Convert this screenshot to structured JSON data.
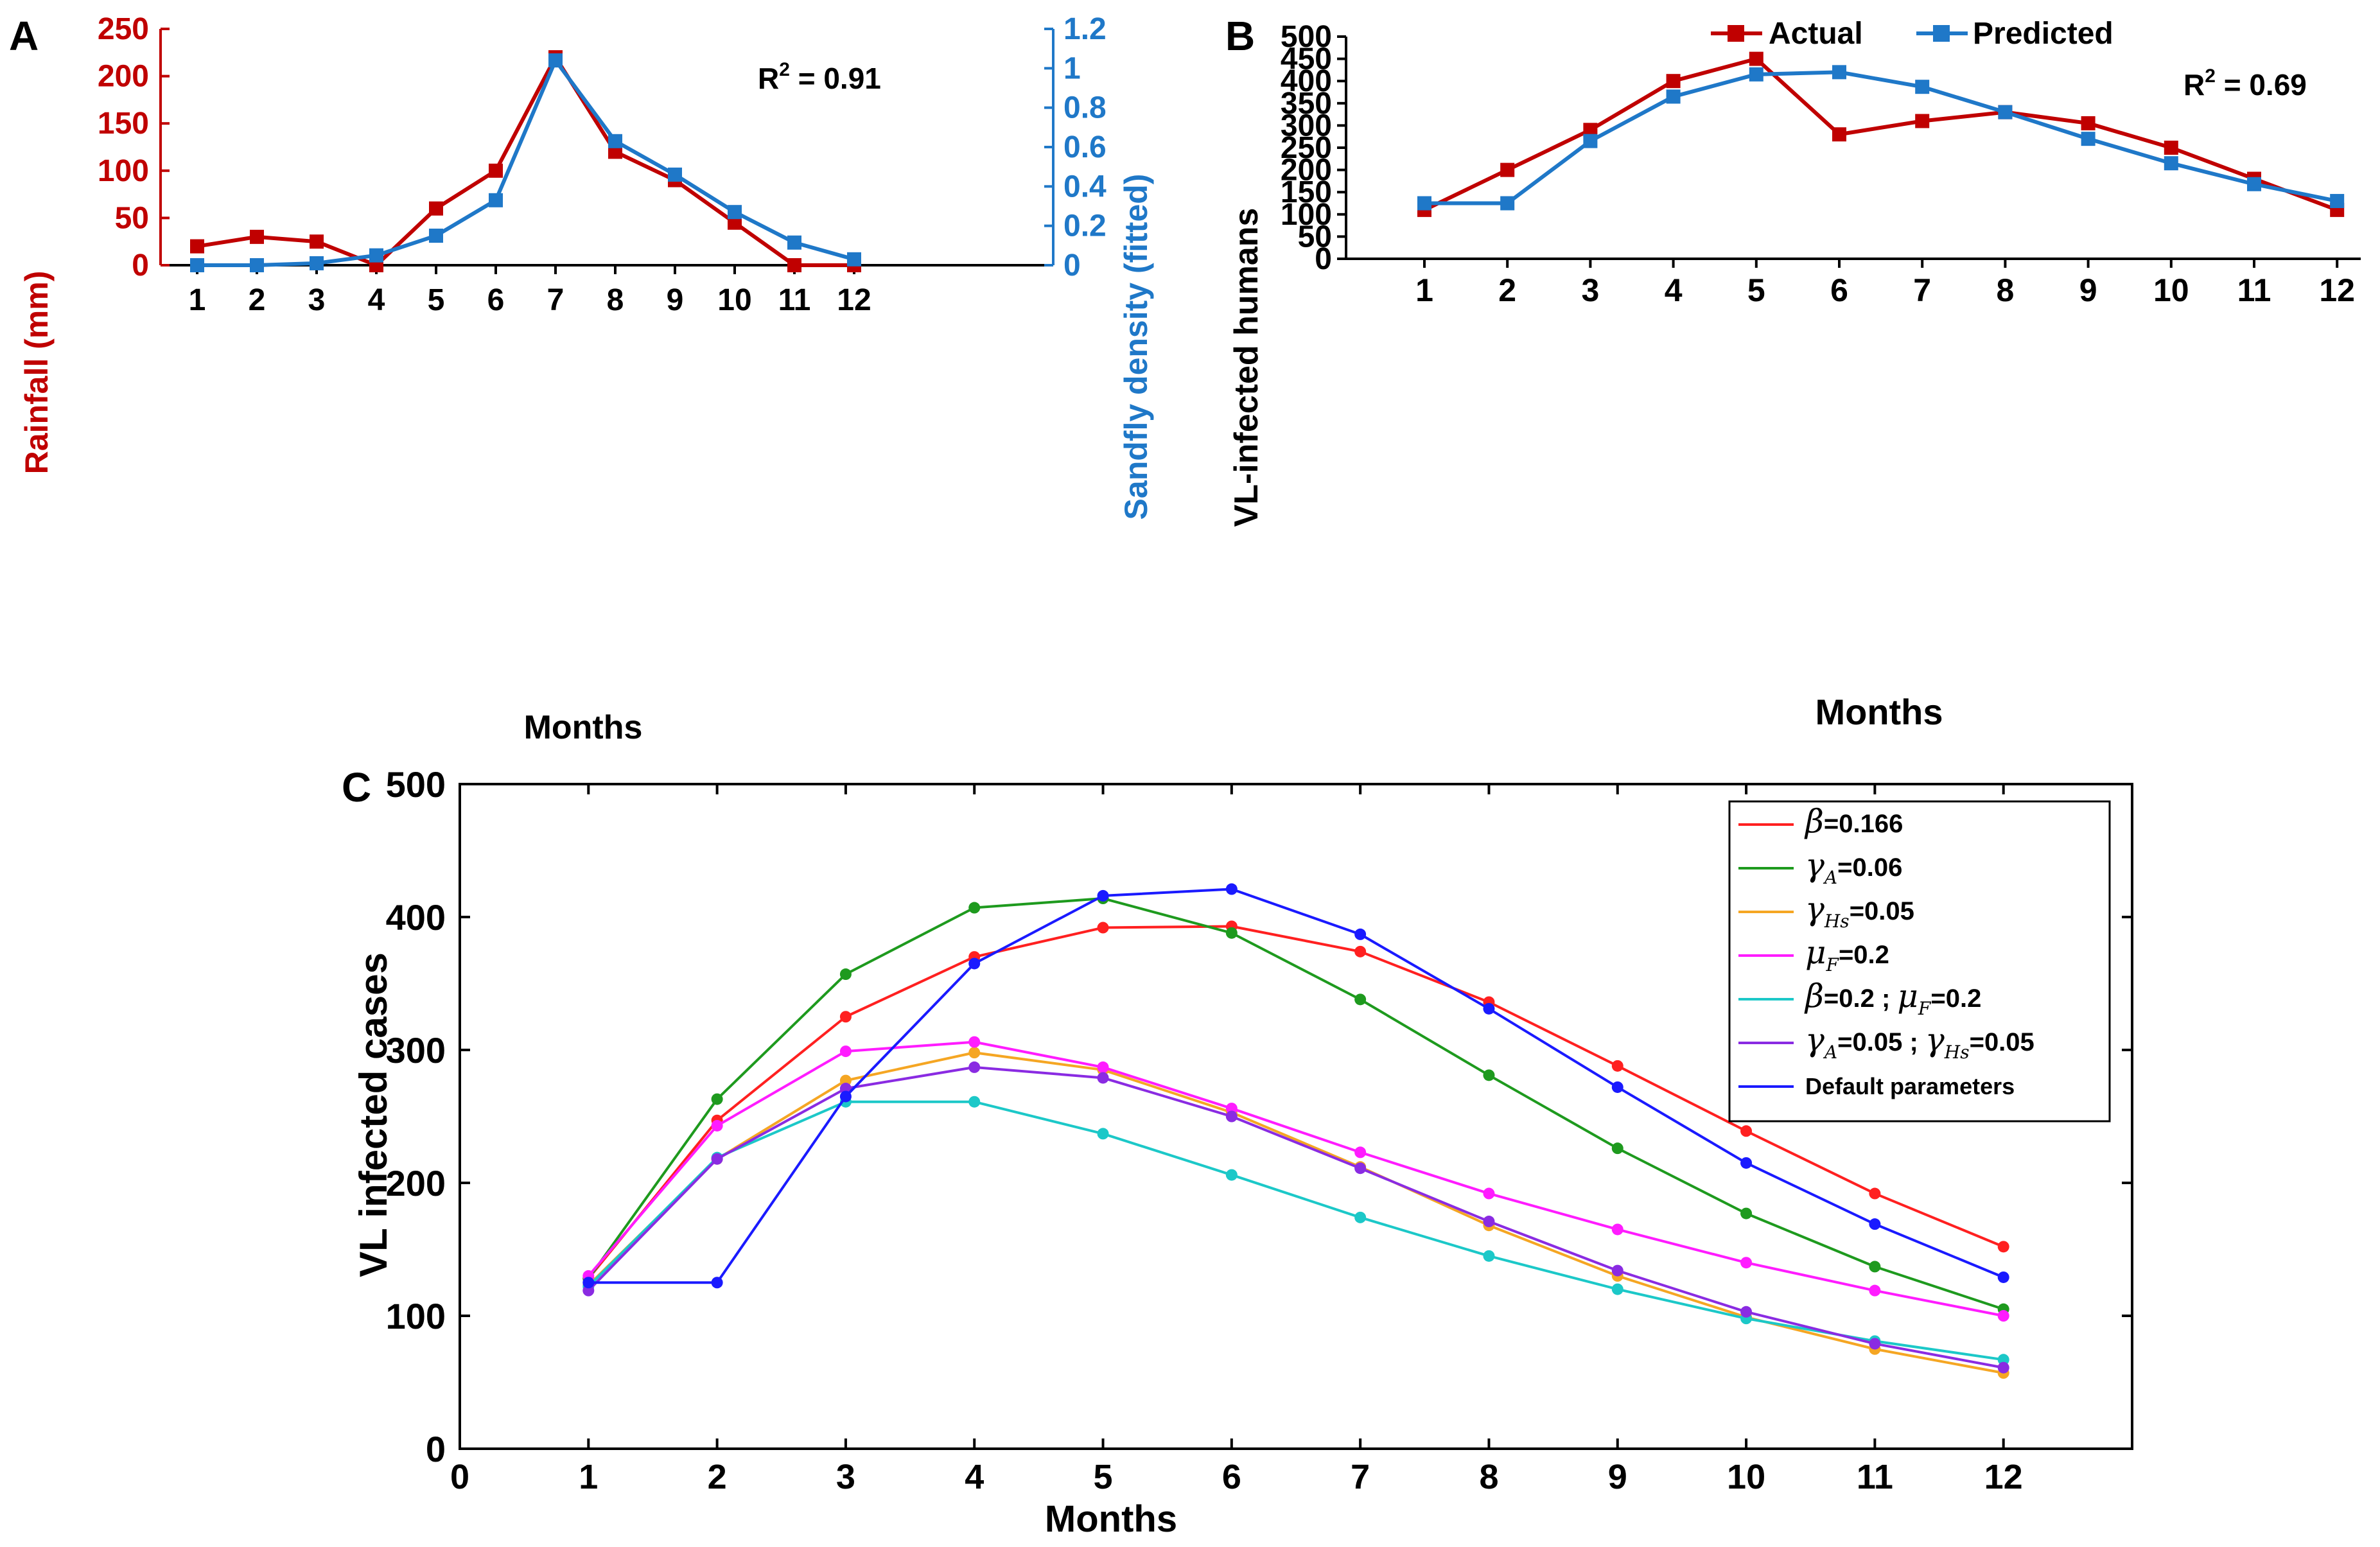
{
  "colors": {
    "rainfall": "#c00000",
    "sandfly": "#1f78c8",
    "actual": "#c00000",
    "predicted": "#1f78c8",
    "axis": "#000000"
  },
  "panels": {
    "a": {
      "letter": "A",
      "r2_prefix": "R",
      "r2_sup": "2",
      "r2_value": " = 0.91",
      "xlabel": "Months",
      "ylabel_left": "Rainfall (mm)",
      "ylabel_right": "Sandfly density (fitted)"
    },
    "b": {
      "letter": "B",
      "r2_prefix": "R",
      "r2_sup": "2",
      "r2_value": " = 0.69",
      "xlabel": "Months",
      "ylabel": "VL-infected humans"
    },
    "c": {
      "letter": "C",
      "xlabel": "Months",
      "ylabel": "VL infected cases"
    }
  },
  "chart_data": [
    {
      "id": "A",
      "type": "line",
      "title": "",
      "xlabel": "Months",
      "ylabel": "Rainfall (mm)",
      "y2label": "Sandfly density (fitted)",
      "categories": [
        1,
        2,
        3,
        4,
        5,
        6,
        7,
        8,
        9,
        10,
        11,
        12
      ],
      "ylim": [
        0,
        250
      ],
      "y2lim": [
        0,
        1.2
      ],
      "yticks": [
        0,
        50,
        100,
        150,
        200,
        250
      ],
      "y2ticks": [
        "0",
        "0.2",
        "0.4",
        "0.6",
        "0.8",
        "1",
        "1.2"
      ],
      "annotation": "R2 = 0.91",
      "series": [
        {
          "name": "Rainfall (mm)",
          "axis": "left",
          "color": "#c00000",
          "values": [
            20,
            30,
            25,
            0,
            60,
            100,
            220,
            120,
            90,
            45,
            0,
            0
          ]
        },
        {
          "name": "Sandfly density (fitted)",
          "axis": "right",
          "color": "#1f78c8",
          "values": [
            0,
            0,
            0.01,
            0.05,
            0.15,
            0.33,
            1.04,
            0.63,
            0.46,
            0.27,
            0.115,
            0.03
          ]
        }
      ]
    },
    {
      "id": "B",
      "type": "line",
      "title": "",
      "xlabel": "Months",
      "ylabel": "VL-infected humans",
      "categories": [
        1,
        2,
        3,
        4,
        5,
        6,
        7,
        8,
        9,
        10,
        11,
        12
      ],
      "ylim": [
        0,
        500
      ],
      "yticks": [
        0,
        50,
        100,
        150,
        200,
        250,
        300,
        350,
        400,
        450,
        500
      ],
      "legend_position": "top-center",
      "annotation": "R2 = 0.69",
      "series": [
        {
          "name": "Actual",
          "color": "#c00000",
          "values": [
            110,
            200,
            290,
            400,
            450,
            280,
            310,
            330,
            305,
            250,
            180,
            110
          ]
        },
        {
          "name": "Predicted",
          "color": "#1f78c8",
          "values": [
            125,
            125,
            265,
            365,
            415,
            420,
            387,
            330,
            270,
            215,
            168,
            130
          ]
        }
      ]
    },
    {
      "id": "C",
      "type": "line",
      "title": "",
      "xlabel": "Months",
      "ylabel": "VL infected cases",
      "x": [
        1,
        2,
        3,
        4,
        5,
        6,
        7,
        8,
        9,
        10,
        11,
        12
      ],
      "xlim": [
        0,
        13
      ],
      "xticks": [
        0,
        1,
        2,
        3,
        4,
        5,
        6,
        7,
        8,
        9,
        10,
        11,
        12
      ],
      "ylim": [
        0,
        500
      ],
      "yticks": [
        0,
        100,
        200,
        300,
        400,
        500
      ],
      "legend_position": "top-right",
      "series": [
        {
          "legend": [
            {
              "t": "sym",
              "v": "β"
            },
            {
              "t": "txt",
              "v": "=0.166"
            }
          ],
          "name": "β=0.166",
          "color": "#ff2020",
          "values": [
            128,
            247,
            325,
            370,
            392,
            393,
            374,
            336,
            288,
            239,
            192,
            152
          ]
        },
        {
          "legend": [
            {
              "t": "sym",
              "v": "γ"
            },
            {
              "t": "sub",
              "v": "A"
            },
            {
              "t": "txt",
              "v": "=0.06"
            }
          ],
          "name": "γA=0.06",
          "color": "#1e9a1e",
          "values": [
            128,
            263,
            357,
            407,
            414,
            388,
            338,
            281,
            226,
            177,
            137,
            105
          ]
        },
        {
          "legend": [
            {
              "t": "sym",
              "v": "γ"
            },
            {
              "t": "sub",
              "v": "Hs"
            },
            {
              "t": "txt",
              "v": "=0.05"
            }
          ],
          "name": "γHs=0.05",
          "color": "#f5a623",
          "values": [
            123,
            218,
            277,
            298,
            285,
            253,
            212,
            168,
            130,
            99,
            75,
            57
          ]
        },
        {
          "legend": [
            {
              "t": "sym",
              "v": "μ"
            },
            {
              "t": "sub",
              "v": "F"
            },
            {
              "t": "txt",
              "v": "=0.2"
            }
          ],
          "name": "μF=0.2",
          "color": "#ff1cff",
          "values": [
            130,
            243,
            299,
            306,
            287,
            256,
            223,
            192,
            165,
            140,
            119,
            100
          ]
        },
        {
          "legend": [
            {
              "t": "sym",
              "v": "β"
            },
            {
              "t": "txt",
              "v": "=0.2 ; "
            },
            {
              "t": "sym",
              "v": "μ"
            },
            {
              "t": "sub",
              "v": "F"
            },
            {
              "t": "txt",
              "v": "=0.2"
            }
          ],
          "name": "β=0.2 ; μF=0.2",
          "color": "#1cc8c8",
          "values": [
            122,
            219,
            261,
            261,
            237,
            206,
            174,
            145,
            120,
            98,
            81,
            67
          ]
        },
        {
          "legend": [
            {
              "t": "sym",
              "v": "γ"
            },
            {
              "t": "sub",
              "v": "A"
            },
            {
              "t": "txt",
              "v": "=0.05 ; "
            },
            {
              "t": "sym",
              "v": "γ"
            },
            {
              "t": "sub",
              "v": "Hs"
            },
            {
              "t": "txt",
              "v": "=0.05"
            }
          ],
          "name": "γA=0.05 ; γHs=0.05",
          "color": "#8a2be2",
          "values": [
            119,
            218,
            271,
            287,
            279,
            250,
            211,
            171,
            134,
            103,
            79,
            61
          ]
        },
        {
          "legend": [
            {
              "t": "txt",
              "v": "Default parameters"
            }
          ],
          "name": "Default parameters",
          "color": "#1a1aff",
          "small": true,
          "values": [
            125,
            125,
            265,
            365,
            416,
            421,
            387,
            331,
            272,
            215,
            169,
            129
          ]
        }
      ]
    }
  ]
}
